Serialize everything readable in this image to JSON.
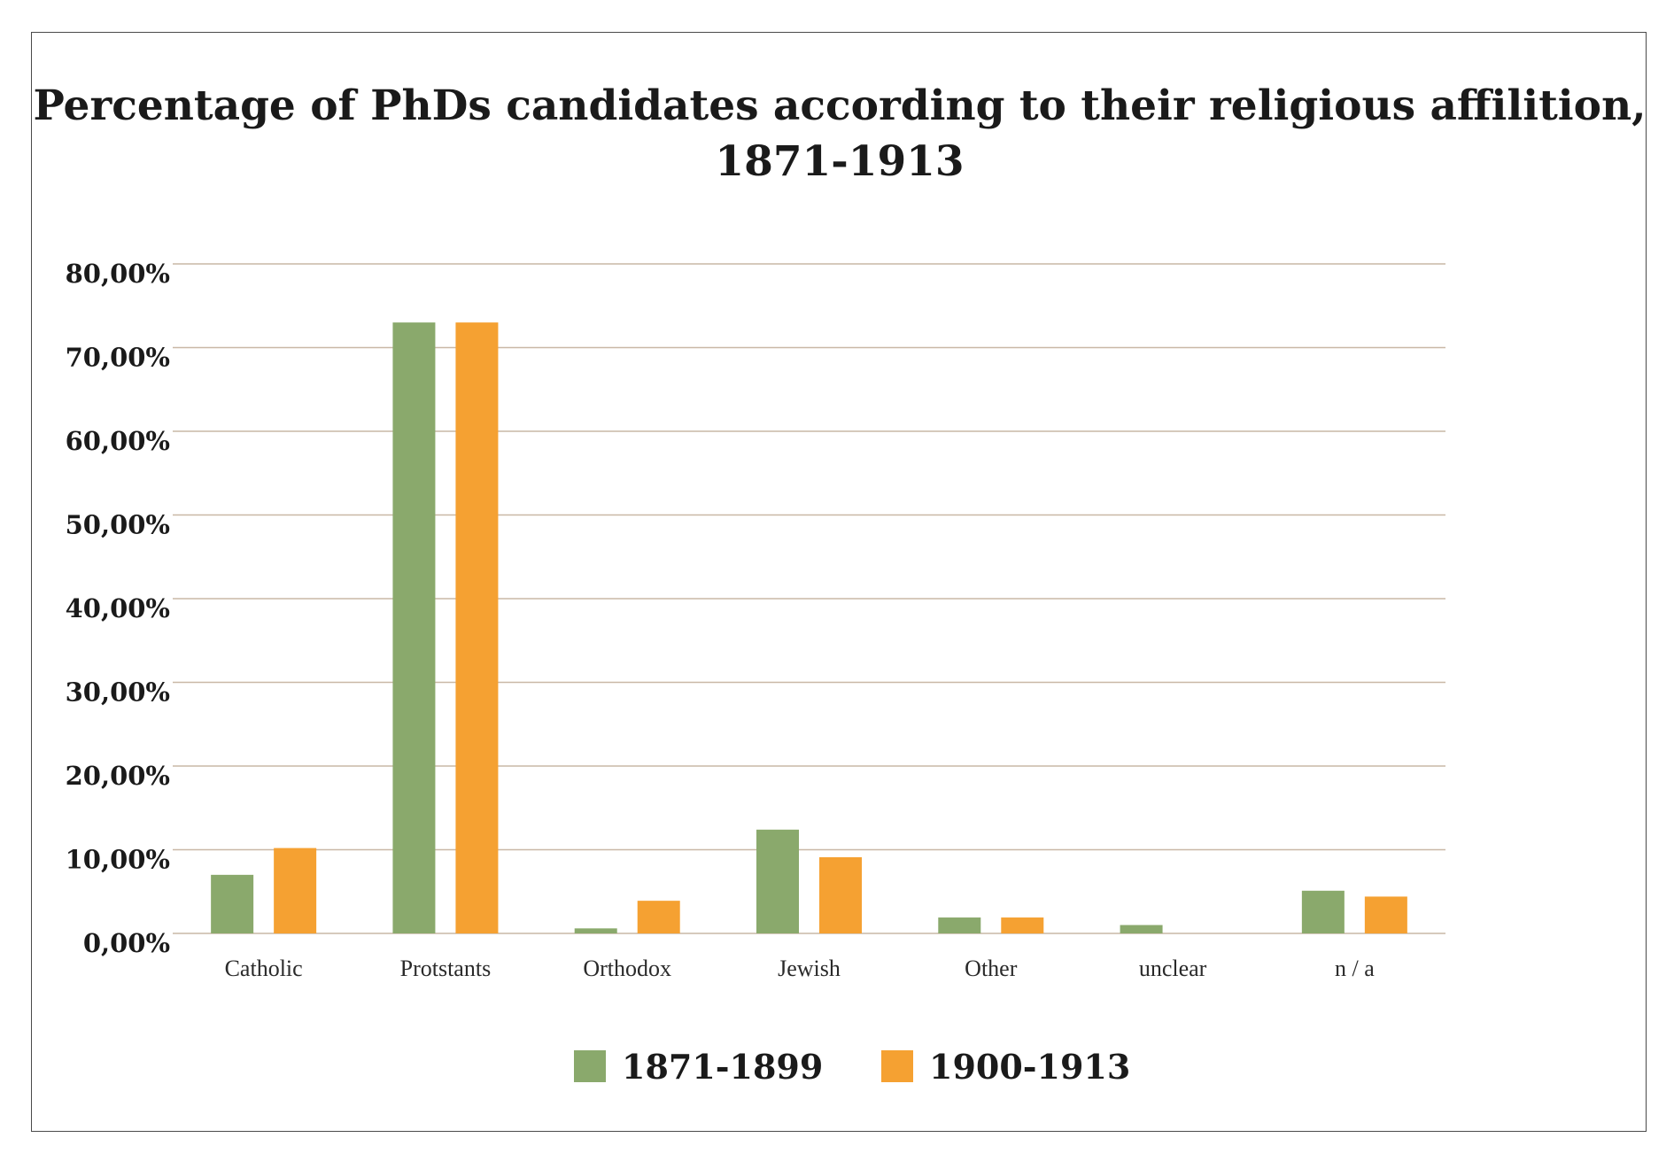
{
  "chart_data": {
    "type": "bar",
    "title_lines": [
      "Percentage of PhDs candidates according to their religious affilition,",
      "1871-1913"
    ],
    "xlabel": "",
    "ylabel": "",
    "ylim": [
      0,
      80
    ],
    "yticks": [
      0,
      10,
      20,
      30,
      40,
      50,
      60,
      70,
      80
    ],
    "ytick_labels": [
      "0,00%",
      "10,00%",
      "20,00%",
      "30,00%",
      "40,00%",
      "50,00%",
      "60,00%",
      "70,00%",
      "80,00%"
    ],
    "categories": [
      "Catholic",
      "Protstants",
      "Orthodox",
      "Jewish",
      "Other",
      "unclear",
      "n / a"
    ],
    "series": [
      {
        "name": "1871-1899",
        "color": "#8aa96c",
        "values": [
          7.0,
          73.0,
          0.6,
          12.4,
          1.9,
          1.0,
          5.1
        ]
      },
      {
        "name": "1900-1913",
        "color": "#f5a132",
        "values": [
          10.2,
          73.0,
          3.9,
          9.1,
          1.9,
          0.0,
          4.4
        ]
      }
    ],
    "grid": true,
    "legend_position": "bottom-center"
  }
}
